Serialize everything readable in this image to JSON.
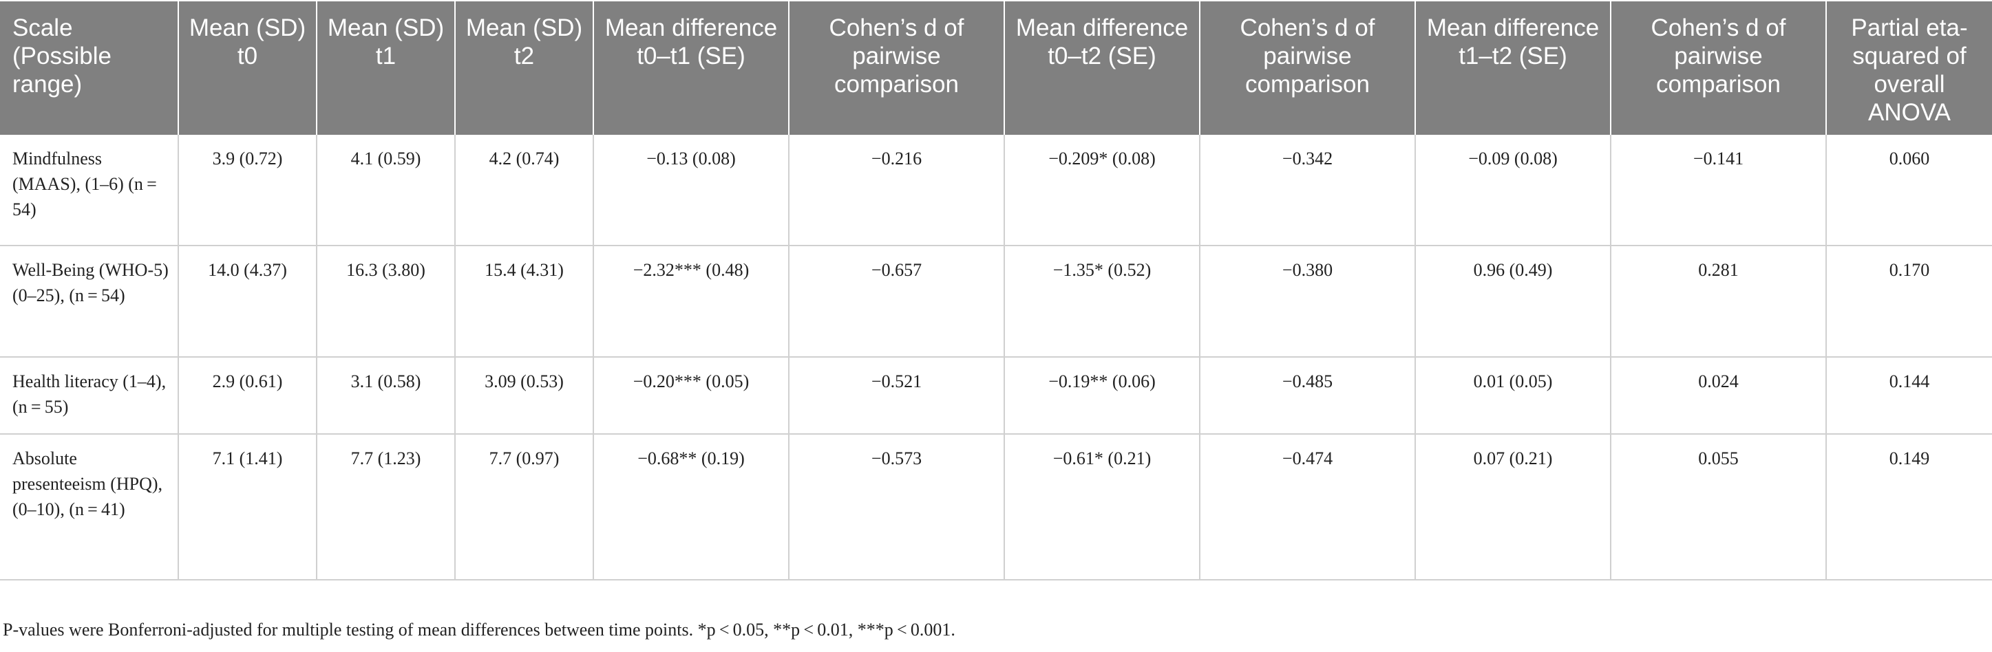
{
  "table": {
    "headers": [
      "Scale (Possible range)",
      "Mean (SD) t0",
      "Mean (SD) t1",
      "Mean (SD) t2",
      "Mean difference t0–t1 (SE)",
      "Cohen’s d of pairwise comparison",
      "Mean difference t0–t2 (SE)",
      "Cohen’s d of pairwise comparison",
      "Mean difference t1–t2 (SE)",
      "Cohen’s d of pairwise comparison",
      "Partial eta-squared of overall ANOVA"
    ],
    "rows": [
      {
        "scale": "Mindfulness (MAAS), (1–6) (n = 54)",
        "cells": [
          "3.9 (0.72)",
          "4.1 (0.59)",
          "4.2 (0.74)",
          "−0.13 (0.08)",
          "−0.216",
          "−0.209* (0.08)",
          "−0.342",
          "−0.09 (0.08)",
          "−0.141",
          "0.060"
        ]
      },
      {
        "scale": "Well-Being (WHO-5) (0–25), (n = 54)",
        "cells": [
          "14.0 (4.37)",
          "16.3 (3.80)",
          "15.4 (4.31)",
          "−2.32*** (0.48)",
          "−0.657",
          "−1.35* (0.52)",
          "−0.380",
          "0.96 (0.49)",
          "0.281",
          "0.170"
        ]
      },
      {
        "scale": "Health literacy (1–4), (n = 55)",
        "cells": [
          "2.9 (0.61)",
          "3.1 (0.58)",
          "3.09 (0.53)",
          "−0.20*** (0.05)",
          "−0.521",
          "−0.19** (0.06)",
          "−0.485",
          "0.01 (0.05)",
          "0.024",
          "0.144"
        ]
      },
      {
        "scale": "Absolute presenteeism (HPQ), (0–10), (n = 41)",
        "cells": [
          "7.1 (1.41)",
          "7.7 (1.23)",
          "7.7 (0.97)",
          "−0.68** (0.19)",
          "−0.573",
          "−0.61* (0.21)",
          "−0.474",
          "0.07 (0.21)",
          "0.055",
          "0.149"
        ]
      }
    ]
  },
  "footnote": "P-values were Bonferroni-adjusted for multiple testing of mean differences between time points. *p < 0.05, **p < 0.01, ***p < 0.001."
}
